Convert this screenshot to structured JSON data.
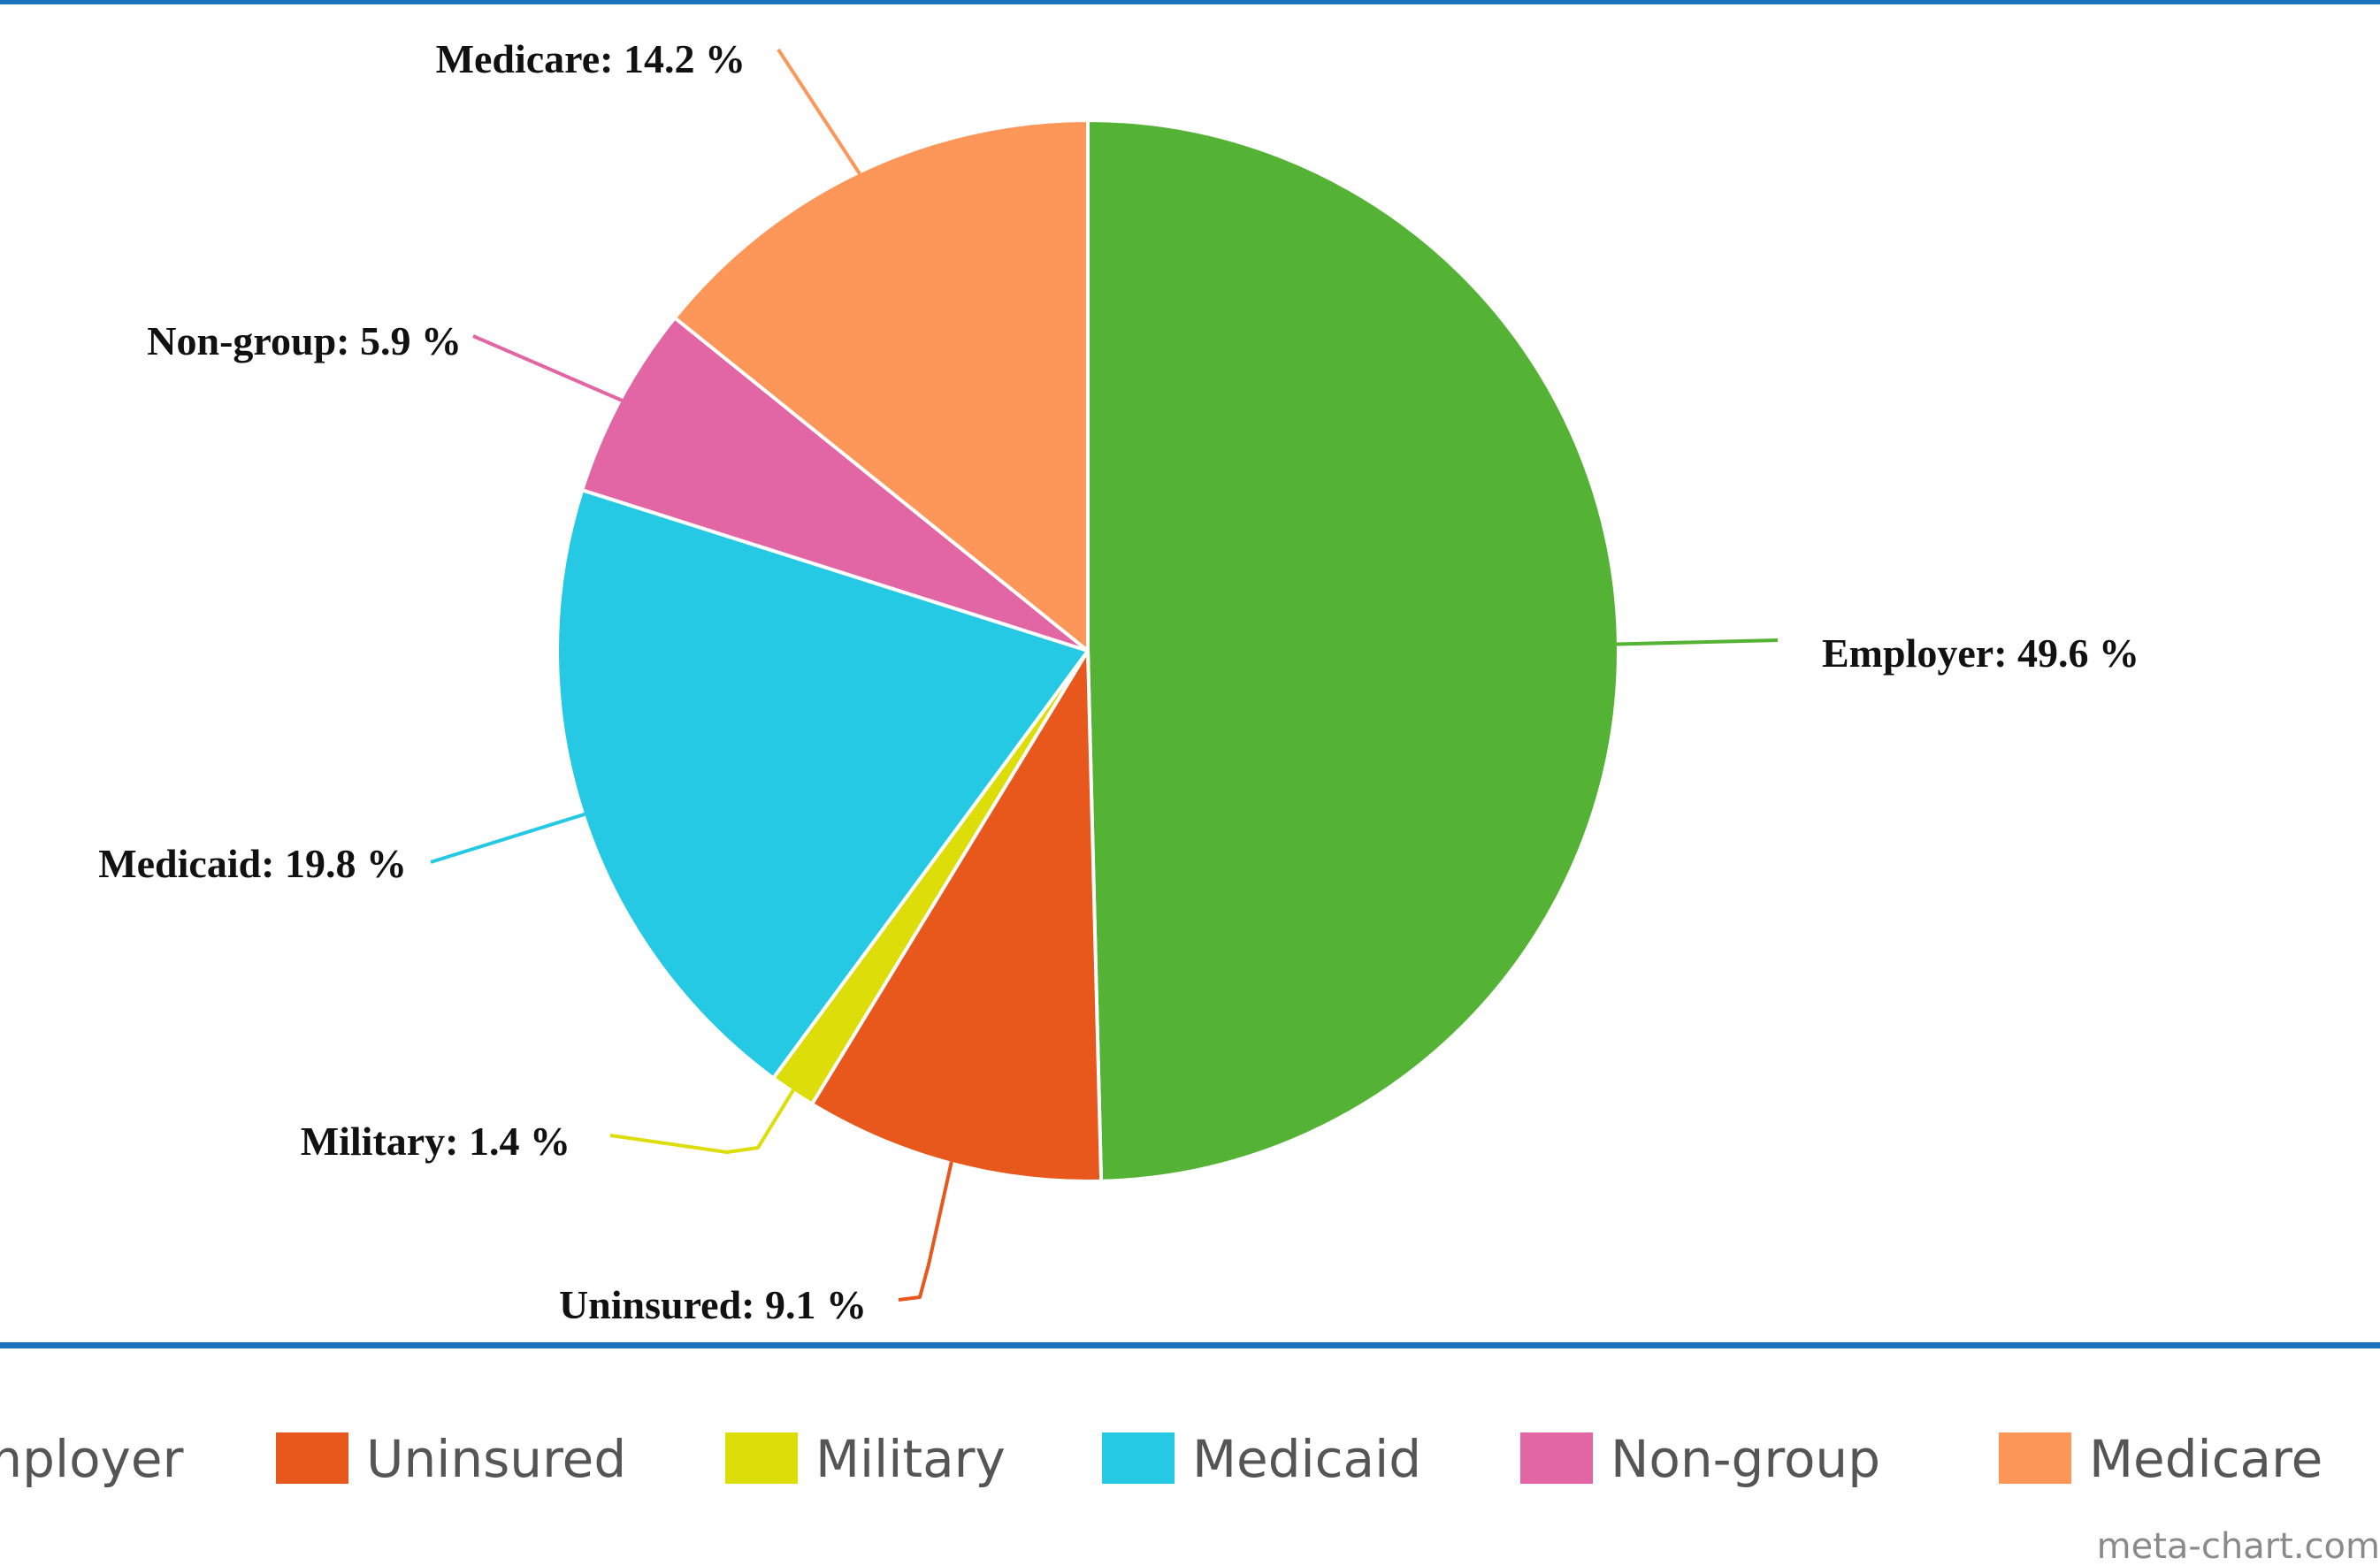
{
  "chart_data": {
    "type": "pie",
    "slices": [
      {
        "name": "Employer",
        "value": 49.6,
        "color": "#54b334",
        "label": "Employer: 49.6 %"
      },
      {
        "name": "Uninsured",
        "value": 9.1,
        "color": "#e8571c",
        "label": "Uninsured: 9.1 %"
      },
      {
        "name": "Military",
        "value": 1.4,
        "color": "#dddd09",
        "label": "Military: 1.4 %"
      },
      {
        "name": "Medicaid",
        "value": 19.8,
        "color": "#26c9e3",
        "label": "Medicaid: 19.8 %"
      },
      {
        "name": "Non-group",
        "value": 5.9,
        "color": "#e366a4",
        "label": "Non-group: 5.9 %"
      },
      {
        "name": "Medicare",
        "value": 14.2,
        "color": "#fd9659",
        "label": "Medicare: 14.2 %"
      }
    ],
    "legend_position": "bottom",
    "legend": [
      "Employer",
      "Uninsured",
      "Military",
      "Medicaid",
      "Non-group",
      "Medicare"
    ]
  },
  "colors": {
    "frame_line": "#1a73bd"
  },
  "watermark": "meta-chart.com"
}
